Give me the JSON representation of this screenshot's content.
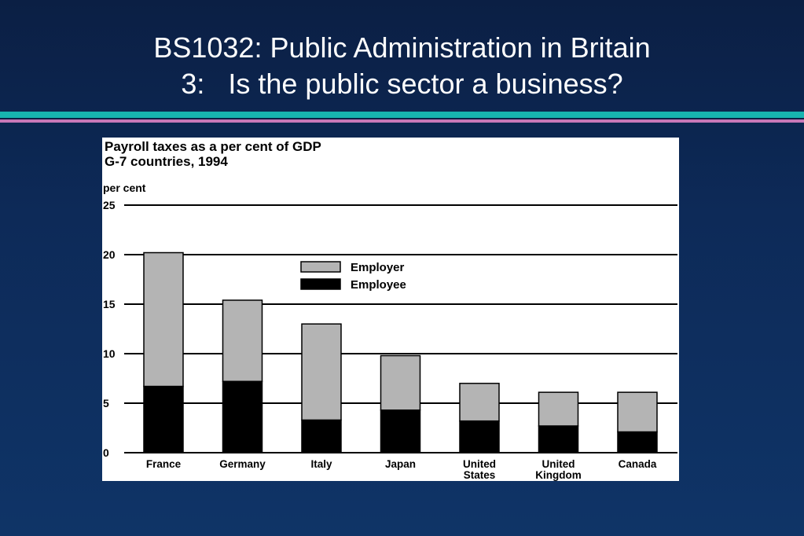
{
  "slide": {
    "title_line1": "BS1032: Public Administration in Britain",
    "title_line2": "3:   Is the public sector a business?"
  },
  "colors": {
    "background": "#0d2a58",
    "rule_teal": "#17b4b0",
    "rule_pink": "#c878b8",
    "employer": "#b4b4b4",
    "employee": "#000000"
  },
  "chart_data": {
    "type": "bar",
    "stacked": true,
    "title": "Payroll taxes as a per cent of GDP",
    "subtitle": "G-7 countries, 1994",
    "ylabel": "per cent",
    "xlabel": "",
    "ylim": [
      0,
      25
    ],
    "yticks": [
      0,
      5,
      10,
      15,
      20,
      25
    ],
    "grid": true,
    "legend_position": "top-center",
    "categories": [
      [
        "France"
      ],
      [
        "Germany"
      ],
      [
        "Italy"
      ],
      [
        "Japan"
      ],
      [
        "United",
        "States"
      ],
      [
        "United",
        "Kingdom"
      ],
      [
        "Canada"
      ]
    ],
    "series": [
      {
        "name": "Employee",
        "color": "#000000",
        "values": [
          6.7,
          7.2,
          3.3,
          4.3,
          3.2,
          2.7,
          2.1
        ]
      },
      {
        "name": "Employer",
        "color": "#b4b4b4",
        "values": [
          13.5,
          8.2,
          9.7,
          5.5,
          3.8,
          3.4,
          4.0
        ]
      }
    ],
    "legend_order": [
      "Employer",
      "Employee"
    ]
  }
}
